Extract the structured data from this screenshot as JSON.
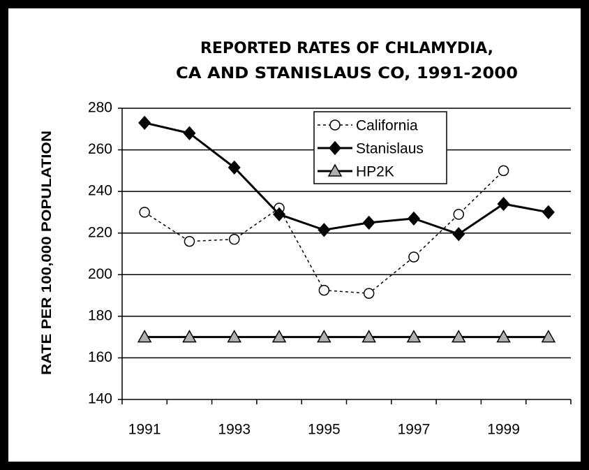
{
  "chart_data": {
    "type": "line",
    "title": [
      "REPORTED RATES OF CHLAMYDIA,",
      "CA AND STANISLAUS CO, 1991-2000"
    ],
    "y_label": "RATE PER 100,000 POPULATION",
    "categories": [
      "1991",
      null,
      "1993",
      null,
      "1995",
      null,
      "1997",
      null,
      "1999",
      null
    ],
    "series": [
      {
        "name": "California",
        "color": "#000000",
        "dash": true,
        "marker": "circle",
        "values": [
          230,
          216,
          217,
          232,
          192.5,
          191,
          208.5,
          229,
          250,
          null
        ]
      },
      {
        "name": "Stanislaus",
        "color": "#000000",
        "dash": false,
        "marker": "diamond",
        "values": [
          273,
          268,
          251.5,
          229,
          221.5,
          225,
          227,
          219.5,
          234,
          230
        ]
      },
      {
        "name": "HP2K",
        "color": "#000000",
        "marker_color": "#b0b0b0",
        "dash": false,
        "marker": "triangle",
        "values": [
          170,
          170,
          170,
          170,
          170,
          170,
          170,
          170,
          170,
          170
        ]
      }
    ],
    "ylim": [
      140,
      280
    ],
    "yticks": [
      140,
      160,
      180,
      200,
      220,
      240,
      260,
      280
    ],
    "grid": true,
    "legend": "top-center"
  }
}
